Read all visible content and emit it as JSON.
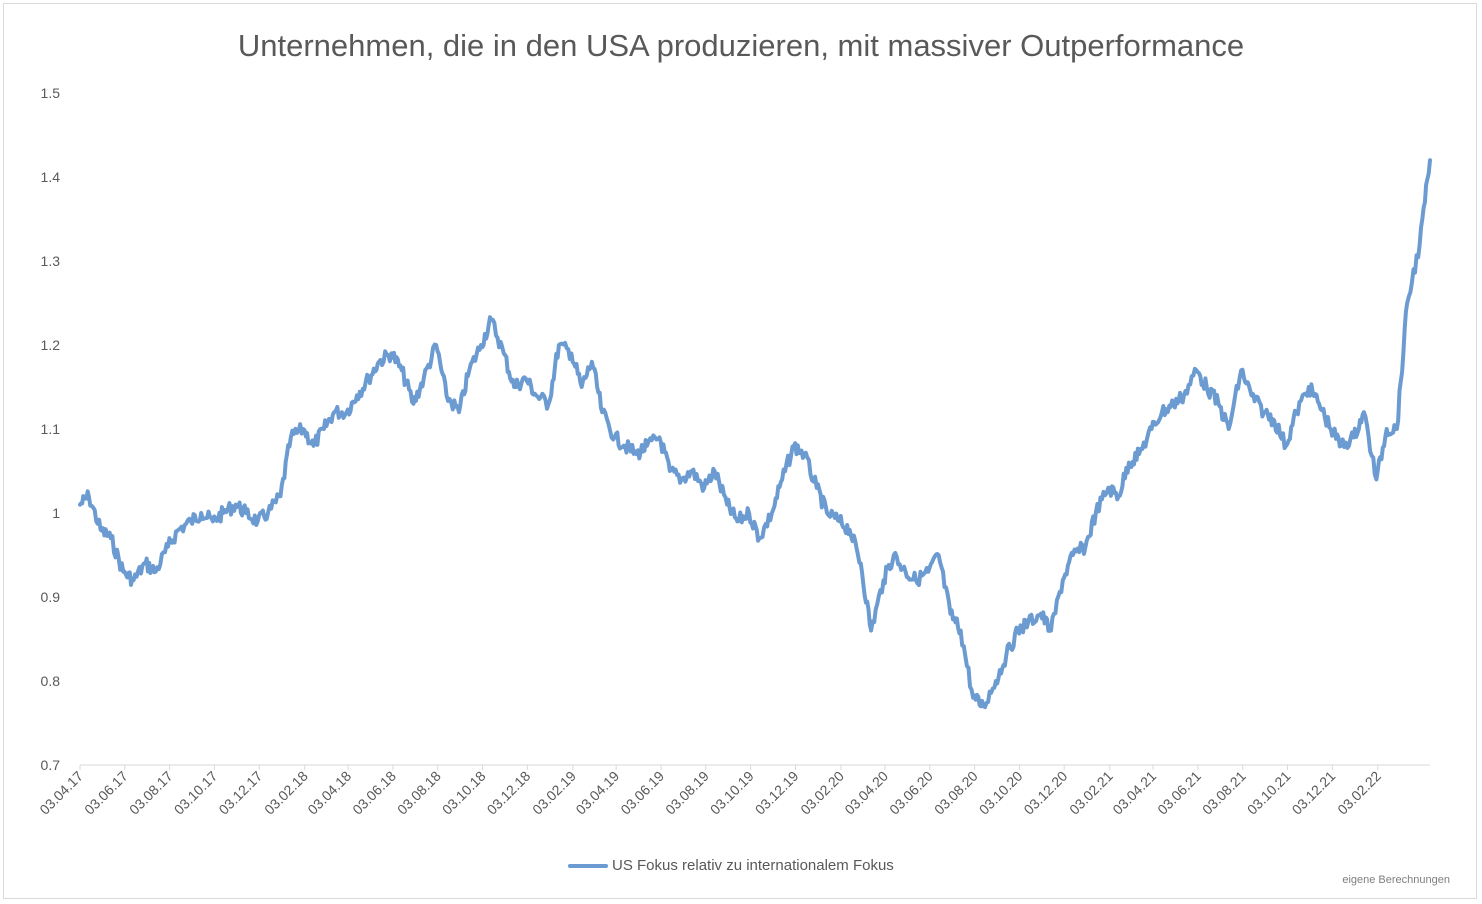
{
  "chart_data": {
    "type": "line",
    "title": "Unternehmen, die in den USA produzieren, mit massiver Outperformance",
    "xlabel": "",
    "ylabel": "",
    "ylim": [
      0.7,
      1.5
    ],
    "yticks": [
      "0.7",
      "0.8",
      "0.9",
      "1",
      "1.1",
      "1.2",
      "1.3",
      "1.4",
      "1.5"
    ],
    "xticks": [
      "03.04.17",
      "03.06.17",
      "03.08.17",
      "03.10.17",
      "03.12.17",
      "03.02.18",
      "03.04.18",
      "03.06.18",
      "03.08.18",
      "03.10.18",
      "03.12.18",
      "03.02.19",
      "03.04.19",
      "03.06.19",
      "03.08.19",
      "03.10.19",
      "03.12.19",
      "03.02.20",
      "03.04.20",
      "03.06.20",
      "03.08.20",
      "03.10.20",
      "03.12.20",
      "03.02.21",
      "03.04.21",
      "03.06.21",
      "03.08.21",
      "03.10.21",
      "03.12.21",
      "03.02.22"
    ],
    "grid": false,
    "legend_position": "bottom",
    "series": [
      {
        "name": "US Fokus relativ zu internationalem Fokus",
        "color": "#6b9bd1",
        "x": [
          "03.04.17",
          "15.04.17",
          "01.05.17",
          "15.05.17",
          "01.06.17",
          "15.06.17",
          "01.07.17",
          "15.07.17",
          "01.08.17",
          "15.08.17",
          "01.09.17",
          "15.09.17",
          "01.10.17",
          "15.10.17",
          "01.11.17",
          "15.11.17",
          "01.12.17",
          "15.12.17",
          "01.01.18",
          "15.01.18",
          "01.02.18",
          "15.02.18",
          "01.03.18",
          "15.03.18",
          "01.04.18",
          "15.04.18",
          "01.05.18",
          "15.05.18",
          "01.06.18",
          "15.06.18",
          "01.07.18",
          "15.07.18",
          "01.08.18",
          "15.08.18",
          "01.09.18",
          "15.09.18",
          "01.10.18",
          "15.10.18",
          "01.11.18",
          "15.11.18",
          "01.12.18",
          "15.12.18",
          "01.01.19",
          "15.01.19",
          "01.02.19",
          "15.02.19",
          "01.03.19",
          "15.03.19",
          "01.04.19",
          "15.04.19",
          "01.05.19",
          "15.05.19",
          "01.06.19",
          "15.06.19",
          "01.07.19",
          "15.07.19",
          "01.08.19",
          "15.08.19",
          "01.09.19",
          "15.09.19",
          "01.10.19",
          "15.10.19",
          "01.11.19",
          "15.11.19",
          "01.12.19",
          "15.12.19",
          "01.01.20",
          "15.01.20",
          "01.02.20",
          "15.02.20",
          "01.03.20",
          "15.03.20",
          "01.04.20",
          "15.04.20",
          "01.05.20",
          "15.05.20",
          "01.06.20",
          "15.06.20",
          "01.07.20",
          "15.07.20",
          "01.08.20",
          "15.08.20",
          "01.09.20",
          "15.09.20",
          "01.10.20",
          "15.10.20",
          "01.11.20",
          "15.11.20",
          "01.12.20",
          "15.12.20",
          "01.01.21",
          "15.01.21",
          "01.02.21",
          "15.02.21",
          "01.03.21",
          "15.03.21",
          "01.04.21",
          "15.04.21",
          "01.05.21",
          "15.05.21",
          "01.06.21",
          "15.06.21",
          "01.07.21",
          "15.07.21",
          "01.08.21",
          "15.08.21",
          "01.09.21",
          "15.09.21",
          "01.10.21",
          "15.10.21",
          "01.11.21",
          "15.11.21",
          "01.12.21",
          "15.12.21",
          "01.01.22",
          "15.01.22",
          "01.02.22",
          "15.02.22",
          "01.03.22",
          "15.03.22",
          "01.04.22",
          "15.04.22"
        ],
        "values": [
          1.01,
          1.02,
          0.98,
          0.97,
          0.93,
          0.92,
          0.94,
          0.93,
          0.96,
          0.98,
          0.99,
          1.0,
          0.99,
          1.0,
          1.01,
          1.0,
          0.99,
          1.0,
          1.02,
          1.09,
          1.1,
          1.08,
          1.1,
          1.12,
          1.12,
          1.14,
          1.16,
          1.18,
          1.19,
          1.17,
          1.13,
          1.16,
          1.2,
          1.14,
          1.12,
          1.17,
          1.2,
          1.23,
          1.19,
          1.15,
          1.16,
          1.14,
          1.13,
          1.2,
          1.19,
          1.15,
          1.18,
          1.12,
          1.09,
          1.08,
          1.07,
          1.08,
          1.09,
          1.05,
          1.04,
          1.05,
          1.03,
          1.05,
          1.01,
          0.99,
          1.0,
          0.97,
          1.0,
          1.04,
          1.08,
          1.07,
          1.03,
          1.0,
          0.99,
          0.98,
          0.94,
          0.86,
          0.92,
          0.95,
          0.93,
          0.92,
          0.93,
          0.95,
          0.88,
          0.86,
          0.78,
          0.77,
          0.8,
          0.83,
          0.86,
          0.87,
          0.88,
          0.86,
          0.92,
          0.95,
          0.96,
          1.0,
          1.03,
          1.02,
          1.06,
          1.07,
          1.1,
          1.12,
          1.13,
          1.14,
          1.17,
          1.15,
          1.13,
          1.1,
          1.17,
          1.14,
          1.12,
          1.11,
          1.08,
          1.12,
          1.15,
          1.13,
          1.1,
          1.08,
          1.09,
          1.12,
          1.04,
          1.1,
          1.1,
          1.25,
          1.32,
          1.42
        ]
      }
    ]
  },
  "legend_label": "US Fokus relativ zu internationalem Fokus",
  "source_note": "eigene Berechnungen"
}
